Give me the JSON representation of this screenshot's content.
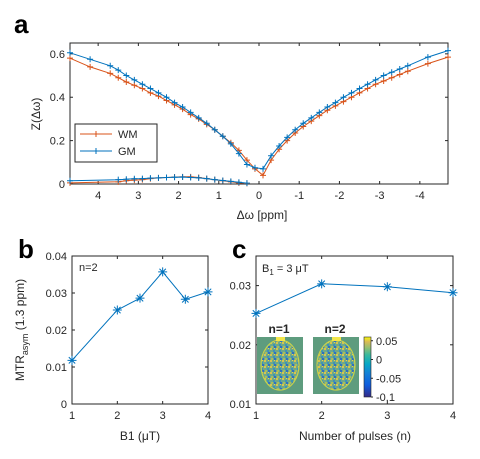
{
  "colors": {
    "wm": "#D95319",
    "gm": "#0072BD",
    "axis": "#262626"
  },
  "panel_labels": {
    "a": "a",
    "b": "b",
    "c": "c"
  },
  "chart_data": [
    {
      "id": "a",
      "type": "line",
      "xlabel": "Δω [ppm]",
      "ylabel": "Z(Δω)",
      "xlim": [
        4.7,
        -4.7
      ],
      "ylim": [
        0,
        0.65
      ],
      "x_reversed": true,
      "xticks": [
        4,
        3,
        2,
        1,
        0,
        -1,
        -2,
        -3,
        -4
      ],
      "yticks": [
        0,
        0.2,
        0.4,
        0.6
      ],
      "legend": {
        "placement": "left",
        "entries": [
          "WM",
          "GM"
        ]
      },
      "marker": "plus",
      "series": [
        {
          "name": "WM",
          "color_key": "wm",
          "spectrum": {
            "x": [
              4.7,
              4.2,
              3.7,
              3.5,
              3.3,
              3.1,
              2.9,
              2.7,
              2.5,
              2.3,
              2.1,
              1.9,
              1.7,
              1.5,
              1.3,
              1.1,
              0.9,
              0.7,
              0.5,
              0.3,
              0.1,
              -0.1,
              -0.3,
              -0.5,
              -0.7,
              -0.9,
              -1.1,
              -1.3,
              -1.5,
              -1.7,
              -1.9,
              -2.1,
              -2.3,
              -2.5,
              -2.7,
              -2.9,
              -3.1,
              -3.3,
              -3.5,
              -3.7,
              -4.2,
              -4.7
            ],
            "y": [
              0.58,
              0.54,
              0.51,
              0.49,
              0.47,
              0.455,
              0.44,
              0.42,
              0.405,
              0.385,
              0.365,
              0.345,
              0.32,
              0.3,
              0.275,
              0.25,
              0.22,
              0.19,
              0.155,
              0.11,
              0.07,
              0.04,
              0.11,
              0.16,
              0.2,
              0.235,
              0.265,
              0.29,
              0.315,
              0.34,
              0.36,
              0.38,
              0.4,
              0.42,
              0.44,
              0.46,
              0.475,
              0.49,
              0.505,
              0.52,
              0.555,
              0.585
            ]
          },
          "mtr_asym": {
            "x": [
              4.7,
              3.5,
              3.3,
              3.1,
              2.9,
              2.7,
              2.5,
              2.3,
              2.1,
              1.9,
              1.7,
              1.5,
              1.3,
              1.1,
              0.9,
              0.7,
              0.5,
              0.3
            ],
            "y": [
              0.005,
              0.01,
              0.015,
              0.018,
              0.02,
              0.025,
              0.028,
              0.03,
              0.032,
              0.033,
              0.033,
              0.03,
              0.025,
              0.02,
              0.015,
              0.01,
              0.005,
              0.003
            ]
          }
        },
        {
          "name": "GM",
          "color_key": "gm",
          "spectrum": {
            "x": [
              4.7,
              4.2,
              3.7,
              3.5,
              3.3,
              3.1,
              2.9,
              2.7,
              2.5,
              2.3,
              2.1,
              1.9,
              1.7,
              1.5,
              1.3,
              1.1,
              0.9,
              0.7,
              0.5,
              0.3,
              0.1,
              -0.1,
              -0.3,
              -0.5,
              -0.7,
              -0.9,
              -1.1,
              -1.3,
              -1.5,
              -1.7,
              -1.9,
              -2.1,
              -2.3,
              -2.5,
              -2.7,
              -2.9,
              -3.1,
              -3.3,
              -3.5,
              -3.7,
              -4.2,
              -4.7
            ],
            "y": [
              0.605,
              0.575,
              0.545,
              0.525,
              0.5,
              0.48,
              0.46,
              0.44,
              0.42,
              0.4,
              0.375,
              0.355,
              0.33,
              0.305,
              0.28,
              0.25,
              0.22,
              0.185,
              0.14,
              0.09,
              0.075,
              0.07,
              0.13,
              0.175,
              0.215,
              0.25,
              0.28,
              0.305,
              0.33,
              0.355,
              0.375,
              0.4,
              0.42,
              0.44,
              0.46,
              0.48,
              0.5,
              0.515,
              0.53,
              0.545,
              0.585,
              0.615
            ]
          },
          "mtr_asym": {
            "x": [
              4.7,
              3.5,
              3.3,
              3.1,
              2.9,
              2.7,
              2.5,
              2.3,
              2.1,
              1.9,
              1.7,
              1.5,
              1.3,
              1.1,
              0.9,
              0.7,
              0.5,
              0.3
            ],
            "y": [
              0.015,
              0.02,
              0.022,
              0.024,
              0.025,
              0.027,
              0.028,
              0.03,
              0.031,
              0.032,
              0.03,
              0.028,
              0.025,
              0.02,
              0.016,
              0.012,
              0.008,
              0.004
            ]
          }
        }
      ]
    },
    {
      "id": "b",
      "type": "line",
      "xlabel": "B1 (μT)",
      "ylabel": "MTR",
      "ylabel_sub": "asym",
      "ylabel_suffix": " (1.3 ppm)",
      "annotation": "n=2",
      "xlim": [
        1,
        4
      ],
      "ylim": [
        0,
        0.04
      ],
      "xticks": [
        1,
        2,
        3,
        4
      ],
      "yticks": [
        0,
        0.01,
        0.02,
        0.03,
        0.04
      ],
      "marker": "asterisk",
      "series": [
        {
          "color_key": "gm",
          "x": [
            1,
            2,
            2.5,
            3,
            3.5,
            4
          ],
          "y": [
            0.0118,
            0.0254,
            0.0286,
            0.0357,
            0.0283,
            0.0303
          ]
        }
      ]
    },
    {
      "id": "c",
      "type": "line",
      "xlabel": "Number of pulses (n)",
      "annotation": {
        "text": "B",
        "sub": "1",
        "suffix": " = 3 μT"
      },
      "xlim": [
        1,
        4
      ],
      "ylim": [
        0.01,
        0.035
      ],
      "xticks": [
        1,
        2,
        3,
        4
      ],
      "yticks": [
        0.01,
        0.02,
        0.03
      ],
      "marker": "asterisk",
      "series": [
        {
          "color_key": "gm",
          "x": [
            1,
            2,
            3,
            4
          ],
          "y": [
            0.0253,
            0.0303,
            0.0298,
            0.0288
          ]
        }
      ],
      "inset": {
        "labels": [
          "n=1",
          "n=2"
        ],
        "colorbar_ticks": [
          "0.05",
          "0",
          "-0.05",
          "-0.1"
        ],
        "colorbar_range": [
          -0.1,
          0.06
        ]
      }
    }
  ]
}
